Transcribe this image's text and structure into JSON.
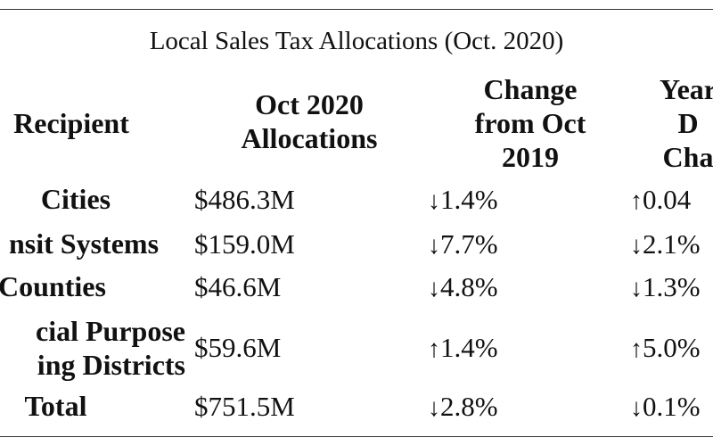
{
  "caption": "Local Sales Tax Allocations (Oct. 2020)",
  "headers": {
    "recipient": [
      "Recipient"
    ],
    "allocations": [
      "Oct 2020",
      "Allocations"
    ],
    "change": [
      "Change",
      "from Oct",
      "2019"
    ],
    "ytd": [
      "Year",
      "D",
      "Cha"
    ]
  },
  "rows": [
    {
      "recipient": [
        "Cities"
      ],
      "allocation": "$486.3M",
      "change_dir": "↓",
      "change": "1.4%",
      "ytd_dir": "↑",
      "ytd": "0.04"
    },
    {
      "recipient": [
        "nsit Systems"
      ],
      "allocation": "$159.0M",
      "change_dir": "↓",
      "change": "7.7%",
      "ytd_dir": "↓",
      "ytd": "2.1%"
    },
    {
      "recipient": [
        "Counties"
      ],
      "allocation": "$46.6M",
      "change_dir": "↓",
      "change": "4.8%",
      "ytd_dir": "↓",
      "ytd": "1.3%"
    },
    {
      "recipient": [
        "cial Purpose",
        "ing Districts"
      ],
      "allocation": "$59.6M",
      "change_dir": "↑",
      "change": "1.4%",
      "ytd_dir": "↑",
      "ytd": "5.0%"
    },
    {
      "recipient": [
        "Total"
      ],
      "allocation": "$751.5M",
      "change_dir": "↓",
      "change": "2.8%",
      "ytd_dir": "↓",
      "ytd": "0.1%"
    }
  ]
}
